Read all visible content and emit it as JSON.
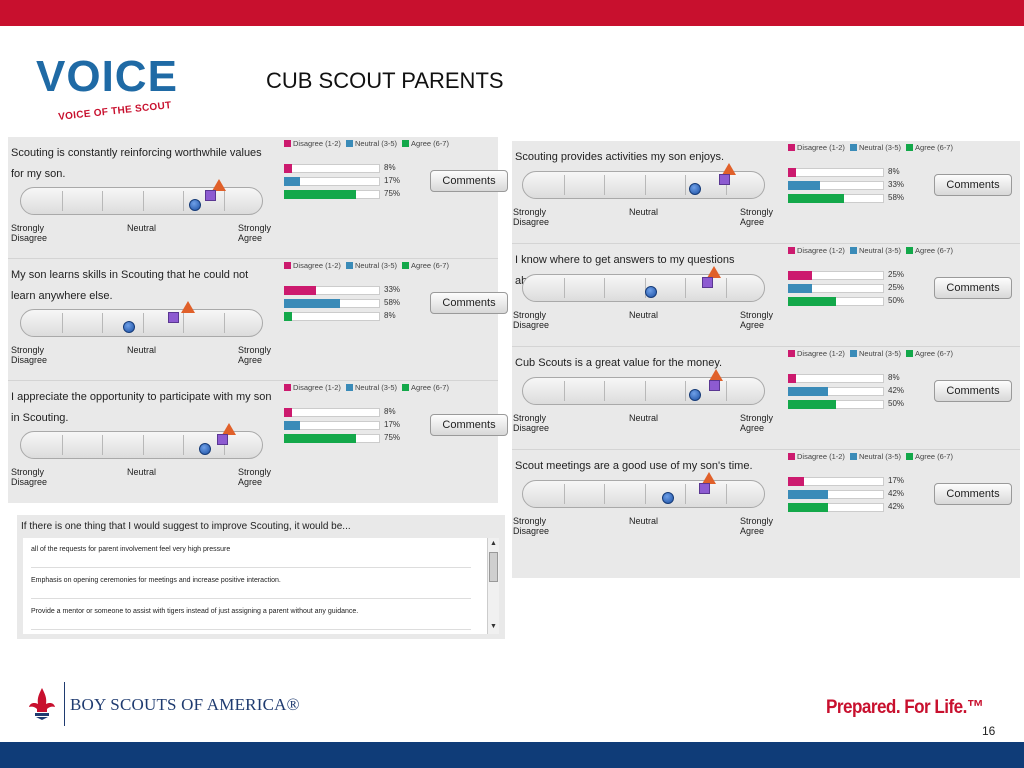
{
  "slide": {
    "title": "CUB SCOUT PARENTS",
    "page_number": "16",
    "brand_color": "#c8102e",
    "footer_color": "#0f3c78"
  },
  "logo": {
    "word": "VOICE",
    "subtitle": "VOICE OF THE SCOUT"
  },
  "legend": {
    "disagree": "Disagree (1-2)",
    "neutral": "Neutral (3-5)",
    "agree": "Agree (6-7)",
    "colors": {
      "disagree": "#cc1a6e",
      "neutral": "#3a8bb8",
      "agree": "#13a84a"
    }
  },
  "scale_labels": {
    "left_1": "Strongly",
    "left_2": "Disagree",
    "middle": "Neutral",
    "right_1": "Strongly",
    "right_2": "Agree"
  },
  "comments_label": "Comments",
  "questions_left": [
    {
      "text": "Scouting is constantly reinforcing worthwhile values for my son.",
      "disagree": 8,
      "neutral": 17,
      "agree": 75,
      "disagree_label": "8%",
      "neutral_label": "17%",
      "agree_label": "75%",
      "markers": {
        "circle": 0.72,
        "square": 0.78,
        "triangle": 0.82
      }
    },
    {
      "text": "My son learns skills in Scouting that he could not learn anywhere else.",
      "disagree": 33,
      "neutral": 58,
      "agree": 8,
      "disagree_label": "33%",
      "neutral_label": "58%",
      "agree_label": "8%",
      "markers": {
        "circle": 0.45,
        "square": 0.63,
        "triangle": 0.69
      }
    },
    {
      "text": "I appreciate the opportunity to participate with my son in Scouting.",
      "disagree": 8,
      "neutral": 17,
      "agree": 75,
      "disagree_label": "8%",
      "neutral_label": "17%",
      "agree_label": "75%",
      "markers": {
        "circle": 0.76,
        "square": 0.83,
        "triangle": 0.86
      }
    }
  ],
  "questions_right": [
    {
      "text": "Scouting provides activities my son enjoys.",
      "disagree": 8,
      "neutral": 33,
      "agree": 58,
      "disagree_label": "8%",
      "neutral_label": "33%",
      "agree_label": "58%",
      "markers": {
        "circle": 0.71,
        "square": 0.83,
        "triangle": 0.85
      }
    },
    {
      "text": "I know where to get answers to my questions about Scouting.",
      "disagree": 25,
      "neutral": 25,
      "agree": 50,
      "disagree_label": "25%",
      "neutral_label": "25%",
      "agree_label": "50%",
      "markers": {
        "circle": 0.53,
        "square": 0.76,
        "triangle": 0.79
      }
    },
    {
      "text": "Cub Scouts is a great value for the money.",
      "disagree": 8,
      "neutral": 42,
      "agree": 50,
      "disagree_label": "8%",
      "neutral_label": "42%",
      "agree_label": "50%",
      "markers": {
        "circle": 0.71,
        "square": 0.79,
        "triangle": 0.8
      }
    },
    {
      "text": "Scout meetings are a good use of my son's time.",
      "disagree": 17,
      "neutral": 42,
      "agree": 42,
      "disagree_label": "17%",
      "neutral_label": "42%",
      "agree_label": "42%",
      "markers": {
        "circle": 0.6,
        "square": 0.75,
        "triangle": 0.77
      }
    }
  ],
  "suggestions": {
    "title": "If there is one thing that I would suggest to improve Scouting, it would be...",
    "items": [
      "all of the requests for parent involvement feel very high pressure",
      "Emphasis on opening ceremonies for meetings and increase positive interaction.",
      "Provide a mentor or someone to assist with tigers instead of just assigning a parent without any guidance."
    ]
  },
  "footer": {
    "bsa_name": "BOY SCOUTS OF AMERICA®",
    "tagline": "Prepared. For Life.™"
  }
}
